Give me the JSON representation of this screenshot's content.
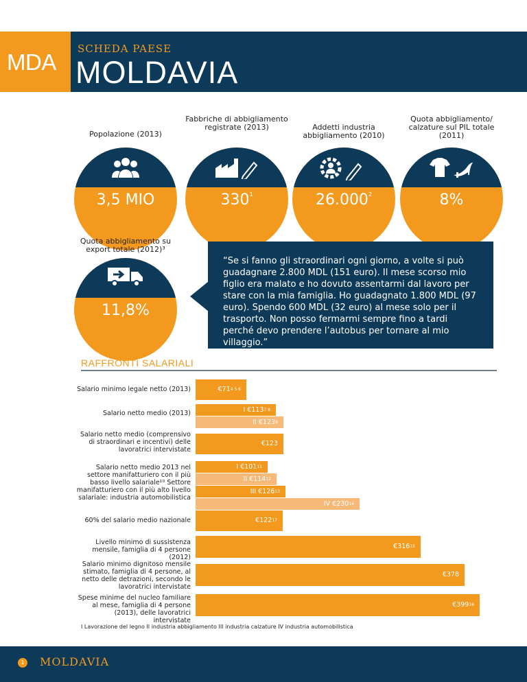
{
  "header": {
    "badge": "MDA",
    "kicker": "SCHEDA PAESE",
    "title": "MOLDAVIA"
  },
  "stats": [
    {
      "label": "Popolazione (2013)",
      "value": "3,5 MIO",
      "sup": "",
      "icon": "people-icon"
    },
    {
      "label": "Fabbriche di abbigliamento registrate (2013)",
      "value": "330",
      "sup": "1",
      "icon": "factory-icon"
    },
    {
      "label": "Addetti industria abbigliamento (2010)",
      "value": "26.000",
      "sup": "2",
      "icon": "worker-gear-icon"
    },
    {
      "label": "Quota abbigliamento/ calzature sul PIL totale (2011)",
      "value": "8%",
      "sup": "",
      "icon": "shirt-shoe-icon"
    },
    {
      "label": "Quota abbigliamento su export totale (2012)³",
      "value": "11,8%",
      "sup": "",
      "icon": "truck-icon"
    }
  ],
  "quote": "“Se si fanno gli straordinari ogni giorno, a volte si può guadagnare 2.800 MDL (151 euro). Il mese scorso mio figlio era malato e ho dovuto assentarmi dal lavoro per stare con la mia famiglia. Ho guadagnato 1.800 MDL (97 euro). Spendo 600 MDL (32 euro) al mese solo per il trasporto. Non posso fermarmi sempre fino a tardi perché devo prendere l’autobus per tornare al mio villaggio.”",
  "section": {
    "title": "RAFFRONTI SALARIALI"
  },
  "chart_data": {
    "type": "bar",
    "orientation": "horizontal",
    "title": "RAFFRONTI SALARIALI",
    "unit": "€",
    "rows": [
      {
        "label": "Salario minimo legale netto (2013)",
        "bars": [
          {
            "text": "€71",
            "sup": "4 5 6",
            "value": 71,
            "shade": "dark"
          }
        ]
      },
      {
        "label": "Salario netto medio (2013)",
        "bars": [
          {
            "text": "I €113",
            "sup": "7 8",
            "value": 113,
            "shade": "dark"
          },
          {
            "text": "II €123",
            "sup": "9",
            "value": 123,
            "shade": "light"
          }
        ]
      },
      {
        "label": "Salario netto medio (comprensivo di straordinari e incentivi) delle lavoratrici intervistate",
        "bars": [
          {
            "text": "€123",
            "sup": "",
            "value": 123,
            "shade": "dark"
          }
        ]
      },
      {
        "label": "Salario netto medio 2013 nel settore manifatturiero con il più basso livello salariale¹⁰ Settore manifatturiero con il più alto livello salariale: industria automobilistica",
        "bars": [
          {
            "text": "I €101",
            "sup": "11",
            "value": 101,
            "shade": "dark"
          },
          {
            "text": "II €114",
            "sup": "12",
            "value": 114,
            "shade": "light"
          },
          {
            "text": "III €126",
            "sup": "13",
            "value": 126,
            "shade": "dark"
          },
          {
            "text": "IV €230",
            "sup": "14",
            "value": 230,
            "shade": "light"
          }
        ]
      },
      {
        "label": "60% del salario medio nazionale",
        "bars": [
          {
            "text": "€122",
            "sup": "17",
            "value": 122,
            "shade": "dark"
          }
        ]
      },
      {
        "label": "Livello minimo di sussistenza mensile, famiglia di 4 persone (2012)",
        "bars": [
          {
            "text": "€316",
            "sup": "15",
            "value": 316,
            "shade": "dark"
          }
        ]
      },
      {
        "label": "Salario minimo dignitoso mensile stimato, famiglia di 4 persone, al netto delle detrazioni, secondo le lavoratrici intervistate",
        "bars": [
          {
            "text": "€378",
            "sup": "",
            "value": 378,
            "shade": "dark"
          }
        ]
      },
      {
        "label": "Spese minime del nucleo familiare al mese, famiglia di 4 persone (2013), delle lavoratrici intervistate",
        "bars": [
          {
            "text": "€399",
            "sup": "16",
            "value": 399,
            "shade": "dark"
          }
        ]
      }
    ],
    "footnote": "I Lavorazione del legno   II industria abbigliamento   III industria calzature   IV industria automobilistica"
  },
  "footer": {
    "page": "1",
    "title": "MOLDAVIA"
  },
  "colors": {
    "navy": "#0e3a5a",
    "orange": "#f39a1e",
    "light_orange": "#f7b978"
  }
}
